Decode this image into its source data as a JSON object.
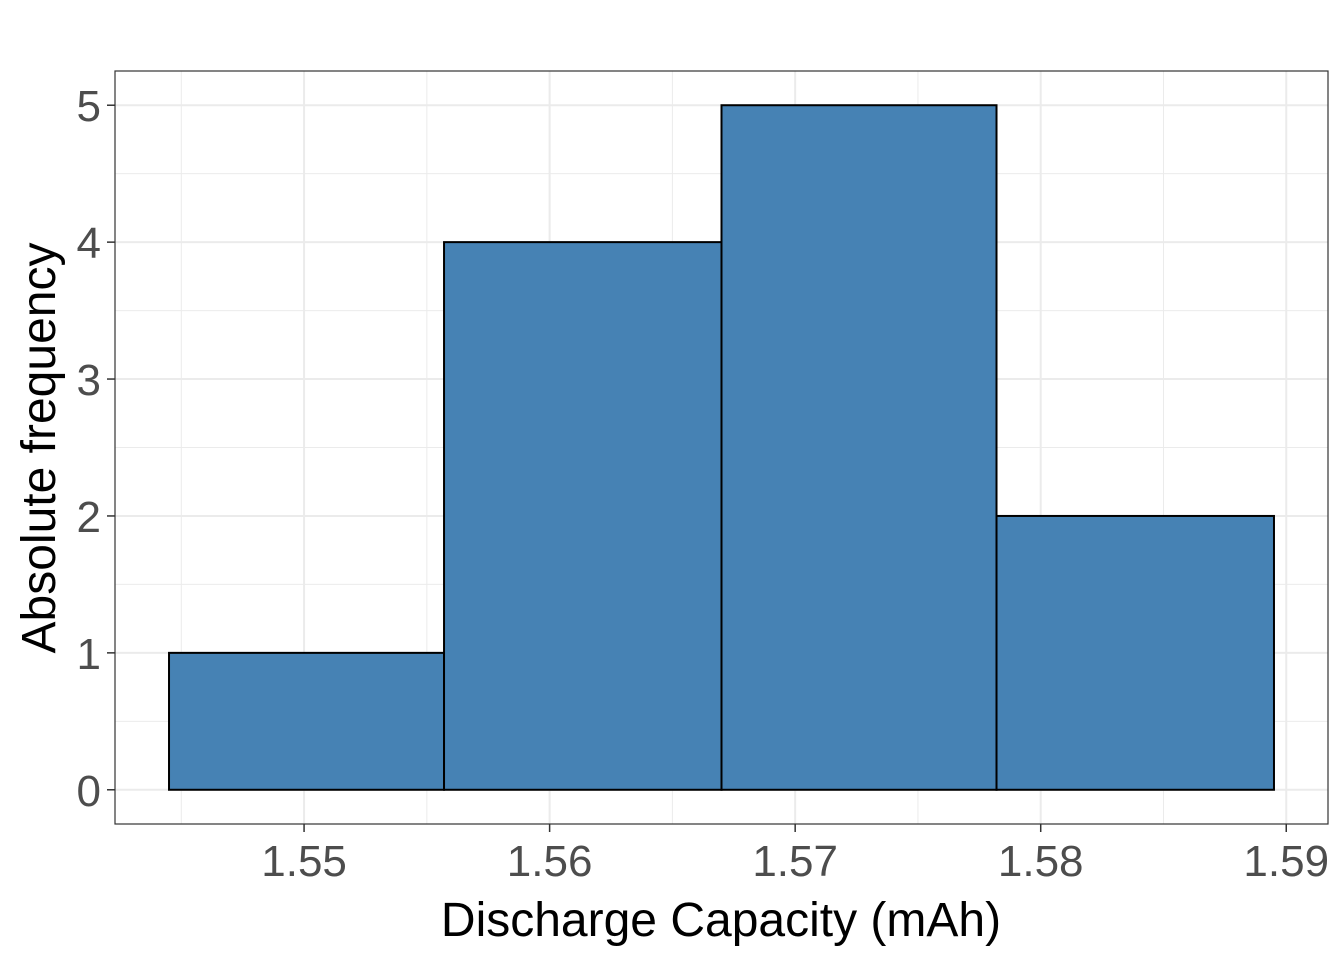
{
  "chart_data": {
    "type": "bar",
    "title": "",
    "xlabel": "Discharge Capacity (mAh)",
    "ylabel": "Absolute frequency",
    "bins": [
      {
        "start": 1.5445,
        "end": 1.5557,
        "count": 1
      },
      {
        "start": 1.5557,
        "end": 1.567,
        "count": 4
      },
      {
        "start": 1.567,
        "end": 1.5782,
        "count": 5
      },
      {
        "start": 1.5782,
        "end": 1.5895,
        "count": 2
      }
    ],
    "xlim": [
      1.5423,
      1.5917
    ],
    "ylim": [
      -0.25,
      5.25
    ],
    "xticks": [
      1.55,
      1.56,
      1.57,
      1.58,
      1.59
    ],
    "xtick_labels": [
      "1.55",
      "1.56",
      "1.57",
      "1.58",
      "1.59"
    ],
    "yticks": [
      0,
      1,
      2,
      3,
      4,
      5
    ],
    "ytick_labels": [
      "0",
      "1",
      "2",
      "3",
      "4",
      "5"
    ],
    "grid": true,
    "bar_fill": "#4682b4",
    "bar_outline": "#000000",
    "grid_color": "#ebebeb",
    "panel_border": "#333333"
  }
}
